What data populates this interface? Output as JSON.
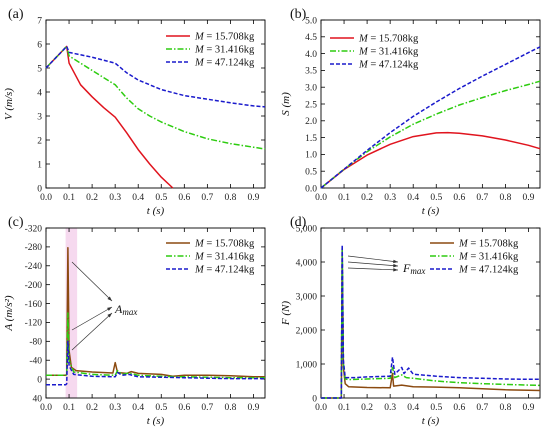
{
  "colors": {
    "red": "#e0141e",
    "green": "#2ecc10",
    "blue": "#1a1acc",
    "brown": "#8b4a10",
    "pink_band": "#f6d9ef"
  },
  "legend_labels": [
    "M = 15.708kg",
    "M = 31.416kg",
    "M = 47.124kg"
  ],
  "chart_data": [
    {
      "type": "line",
      "panel_label": "(a)",
      "xlabel": "t (s)",
      "ylabel": "V (m/s)",
      "xlim": [
        0.0,
        0.95
      ],
      "ylim": [
        0,
        7
      ],
      "xticks": [
        "0.0",
        "0.1",
        "0.2",
        "0.3",
        "0.4",
        "0.5",
        "0.6",
        "0.7",
        "0.8",
        "0.9"
      ],
      "yticks": [
        "0",
        "1",
        "2",
        "3",
        "4",
        "5",
        "6",
        "7"
      ],
      "legend_position": "top-right",
      "series": [
        {
          "name": "M = 15.708kg",
          "color": "red",
          "dash": "solid",
          "points": [
            [
              0,
              5
            ],
            [
              0.09,
              5.9
            ],
            [
              0.1,
              5.2
            ],
            [
              0.15,
              4.3
            ],
            [
              0.2,
              3.8
            ],
            [
              0.25,
              3.35
            ],
            [
              0.3,
              2.95
            ],
            [
              0.35,
              2.3
            ],
            [
              0.4,
              1.6
            ],
            [
              0.45,
              1.0
            ],
            [
              0.5,
              0.45
            ],
            [
              0.55,
              0
            ]
          ]
        },
        {
          "name": "M = 31.416kg",
          "color": "green",
          "dash": "dashdot",
          "points": [
            [
              0,
              5
            ],
            [
              0.09,
              5.9
            ],
            [
              0.1,
              5.5
            ],
            [
              0.15,
              5.2
            ],
            [
              0.2,
              4.9
            ],
            [
              0.25,
              4.6
            ],
            [
              0.3,
              4.3
            ],
            [
              0.35,
              3.75
            ],
            [
              0.4,
              3.3
            ],
            [
              0.45,
              3.0
            ],
            [
              0.5,
              2.75
            ],
            [
              0.6,
              2.35
            ],
            [
              0.7,
              2.05
            ],
            [
              0.8,
              1.85
            ],
            [
              0.9,
              1.7
            ],
            [
              0.95,
              1.62
            ]
          ]
        },
        {
          "name": "M = 47.124kg",
          "color": "blue",
          "dash": "dashed",
          "points": [
            [
              0,
              5
            ],
            [
              0.09,
              5.9
            ],
            [
              0.1,
              5.65
            ],
            [
              0.2,
              5.45
            ],
            [
              0.3,
              5.2
            ],
            [
              0.35,
              4.8
            ],
            [
              0.4,
              4.5
            ],
            [
              0.5,
              4.1
            ],
            [
              0.6,
              3.85
            ],
            [
              0.7,
              3.7
            ],
            [
              0.8,
              3.55
            ],
            [
              0.9,
              3.42
            ],
            [
              0.95,
              3.38
            ]
          ]
        }
      ]
    },
    {
      "type": "line",
      "panel_label": "(b)",
      "xlabel": "t (s)",
      "ylabel": "S (m)",
      "xlim": [
        0.0,
        0.95
      ],
      "ylim": [
        0,
        5
      ],
      "xticks": [
        "0.0",
        "0.1",
        "0.2",
        "0.3",
        "0.4",
        "0.5",
        "0.6",
        "0.7",
        "0.8",
        "0.9"
      ],
      "yticks": [
        "0.0",
        "0.5",
        "1.0",
        "1.5",
        "2.0",
        "2.5",
        "3.0",
        "3.5",
        "4.0",
        "4.5",
        "5.0"
      ],
      "legend_position": "top-left",
      "series": [
        {
          "name": "M = 15.708kg",
          "color": "red",
          "dash": "solid",
          "points": [
            [
              0,
              0
            ],
            [
              0.1,
              0.55
            ],
            [
              0.2,
              0.98
            ],
            [
              0.3,
              1.3
            ],
            [
              0.4,
              1.53
            ],
            [
              0.5,
              1.64
            ],
            [
              0.55,
              1.65
            ],
            [
              0.6,
              1.63
            ],
            [
              0.7,
              1.55
            ],
            [
              0.8,
              1.43
            ],
            [
              0.9,
              1.27
            ],
            [
              0.95,
              1.17
            ]
          ]
        },
        {
          "name": "M = 31.416kg",
          "color": "green",
          "dash": "dashdot",
          "points": [
            [
              0,
              0
            ],
            [
              0.1,
              0.56
            ],
            [
              0.2,
              1.08
            ],
            [
              0.3,
              1.52
            ],
            [
              0.4,
              1.9
            ],
            [
              0.5,
              2.2
            ],
            [
              0.6,
              2.47
            ],
            [
              0.7,
              2.69
            ],
            [
              0.8,
              2.9
            ],
            [
              0.9,
              3.08
            ],
            [
              0.95,
              3.18
            ]
          ]
        },
        {
          "name": "M = 47.124kg",
          "color": "blue",
          "dash": "dashed",
          "points": [
            [
              0,
              0
            ],
            [
              0.1,
              0.56
            ],
            [
              0.2,
              1.12
            ],
            [
              0.3,
              1.65
            ],
            [
              0.4,
              2.13
            ],
            [
              0.5,
              2.56
            ],
            [
              0.6,
              2.96
            ],
            [
              0.7,
              3.33
            ],
            [
              0.8,
              3.68
            ],
            [
              0.9,
              4.03
            ],
            [
              0.95,
              4.2
            ]
          ]
        }
      ]
    },
    {
      "type": "line",
      "panel_label": "(c)",
      "xlabel": "t (s)",
      "ylabel": "A (m/s²)",
      "xlim": [
        0.0,
        0.95
      ],
      "ylim": [
        40,
        -320
      ],
      "xticks": [
        "0.0",
        "0.1",
        "0.2",
        "0.3",
        "0.4",
        "0.5",
        "0.6",
        "0.7",
        "0.8",
        "0.9"
      ],
      "yticks": [
        "-320",
        "-280",
        "-240",
        "-200",
        "-160",
        "-120",
        "-80",
        "-40",
        "0",
        "40"
      ],
      "annotation": "Amax",
      "legend_position": "top-right",
      "series": [
        {
          "name": "M = 15.708kg",
          "color": "brown",
          "dash": "solid",
          "points": [
            [
              0,
              -8
            ],
            [
              0.085,
              -8
            ],
            [
              0.09,
              -10
            ],
            [
              0.095,
              -278
            ],
            [
              0.1,
              -60
            ],
            [
              0.11,
              -25
            ],
            [
              0.13,
              -18
            ],
            [
              0.2,
              -15
            ],
            [
              0.29,
              -13
            ],
            [
              0.3,
              -35
            ],
            [
              0.31,
              -14
            ],
            [
              0.35,
              -12
            ],
            [
              0.37,
              -16
            ],
            [
              0.4,
              -12
            ],
            [
              0.5,
              -10
            ],
            [
              0.55,
              -6
            ],
            [
              0.6,
              -8
            ],
            [
              0.7,
              -8
            ],
            [
              0.8,
              -7
            ],
            [
              0.9,
              -5
            ],
            [
              0.95,
              -5
            ]
          ]
        },
        {
          "name": "M = 31.416kg",
          "color": "green",
          "dash": "dashdot",
          "points": [
            [
              0,
              -8
            ],
            [
              0.085,
              -8
            ],
            [
              0.09,
              -10
            ],
            [
              0.095,
              -140
            ],
            [
              0.1,
              -40
            ],
            [
              0.12,
              -15
            ],
            [
              0.2,
              -10
            ],
            [
              0.3,
              -8
            ],
            [
              0.31,
              -18
            ],
            [
              0.33,
              -10
            ],
            [
              0.36,
              -13
            ],
            [
              0.4,
              -8
            ],
            [
              0.5,
              -6
            ],
            [
              0.6,
              -5
            ],
            [
              0.7,
              -4
            ],
            [
              0.8,
              -3
            ],
            [
              0.9,
              -3
            ],
            [
              0.95,
              -3
            ]
          ]
        },
        {
          "name": "M = 47.124kg",
          "color": "blue",
          "dash": "dashed",
          "points": [
            [
              0,
              12
            ],
            [
              0.085,
              12
            ],
            [
              0.09,
              10
            ],
            [
              0.095,
              -80
            ],
            [
              0.1,
              -28
            ],
            [
              0.12,
              -10
            ],
            [
              0.2,
              -6
            ],
            [
              0.3,
              -5
            ],
            [
              0.31,
              -14
            ],
            [
              0.33,
              -8
            ],
            [
              0.36,
              -10
            ],
            [
              0.4,
              -5
            ],
            [
              0.5,
              -4
            ],
            [
              0.6,
              -3
            ],
            [
              0.7,
              -2
            ],
            [
              0.8,
              -1
            ],
            [
              0.9,
              -1
            ],
            [
              0.95,
              -1
            ]
          ]
        }
      ]
    },
    {
      "type": "line",
      "panel_label": "(d)",
      "xlabel": "t (s)",
      "ylabel": "F (N)",
      "xlim": [
        0.0,
        0.95
      ],
      "ylim": [
        0,
        5000
      ],
      "xticks": [
        "0.0",
        "0.1",
        "0.2",
        "0.3",
        "0.4",
        "0.5",
        "0.6",
        "0.7",
        "0.8",
        "0.9"
      ],
      "yticks": [
        "0",
        "1,000",
        "2,000",
        "3,000",
        "4,000",
        "5,000"
      ],
      "annotation": "Fmax",
      "legend_position": "top-right",
      "series": [
        {
          "name": "M = 15.708kg",
          "color": "brown",
          "dash": "solid",
          "points": [
            [
              0,
              0
            ],
            [
              0.088,
              0
            ],
            [
              0.092,
              4380
            ],
            [
              0.097,
              900
            ],
            [
              0.105,
              420
            ],
            [
              0.12,
              330
            ],
            [
              0.2,
              310
            ],
            [
              0.3,
              300
            ],
            [
              0.31,
              720
            ],
            [
              0.315,
              350
            ],
            [
              0.35,
              380
            ],
            [
              0.4,
              330
            ],
            [
              0.5,
              320
            ],
            [
              0.6,
              300
            ],
            [
              0.7,
              270
            ],
            [
              0.8,
              240
            ],
            [
              0.9,
              230
            ],
            [
              0.95,
              220
            ]
          ]
        },
        {
          "name": "M = 31.416kg",
          "color": "green",
          "dash": "dashdot",
          "points": [
            [
              0,
              0
            ],
            [
              0.088,
              0
            ],
            [
              0.092,
              4430
            ],
            [
              0.097,
              1000
            ],
            [
              0.105,
              560
            ],
            [
              0.12,
              540
            ],
            [
              0.2,
              560
            ],
            [
              0.3,
              580
            ],
            [
              0.31,
              900
            ],
            [
              0.32,
              600
            ],
            [
              0.35,
              680
            ],
            [
              0.37,
              600
            ],
            [
              0.4,
              580
            ],
            [
              0.5,
              500
            ],
            [
              0.6,
              450
            ],
            [
              0.7,
              420
            ],
            [
              0.8,
              400
            ],
            [
              0.9,
              380
            ],
            [
              0.95,
              370
            ]
          ]
        },
        {
          "name": "M = 47.124kg",
          "color": "blue",
          "dash": "dashed",
          "points": [
            [
              0,
              0
            ],
            [
              0.088,
              0
            ],
            [
              0.092,
              4500
            ],
            [
              0.097,
              1100
            ],
            [
              0.105,
              600
            ],
            [
              0.15,
              600
            ],
            [
              0.2,
              620
            ],
            [
              0.3,
              640
            ],
            [
              0.31,
              1200
            ],
            [
              0.32,
              700
            ],
            [
              0.35,
              900
            ],
            [
              0.36,
              720
            ],
            [
              0.38,
              880
            ],
            [
              0.4,
              700
            ],
            [
              0.5,
              640
            ],
            [
              0.6,
              600
            ],
            [
              0.7,
              580
            ],
            [
              0.8,
              560
            ],
            [
              0.9,
              550
            ],
            [
              0.95,
              550
            ]
          ]
        }
      ]
    }
  ]
}
